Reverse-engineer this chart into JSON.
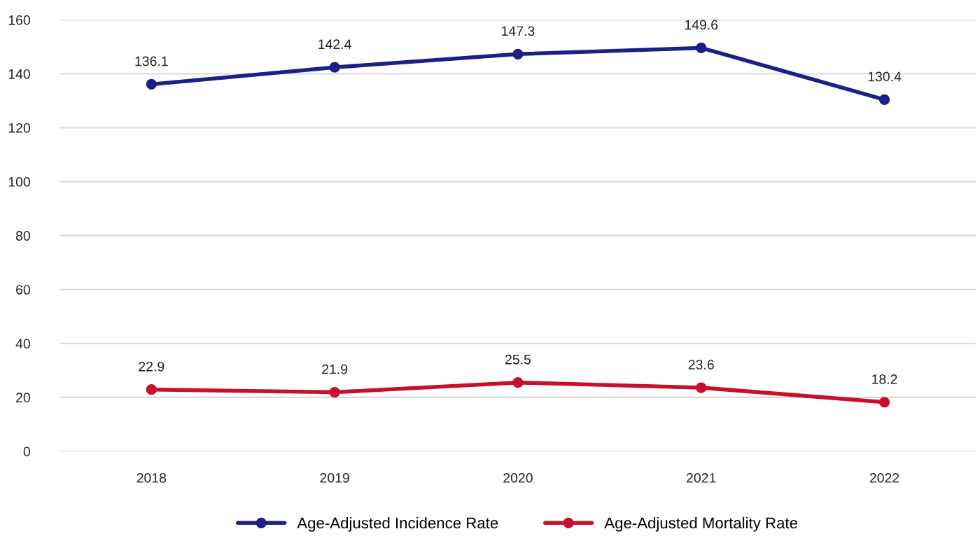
{
  "chart_data": {
    "type": "line",
    "categories": [
      "2018",
      "2019",
      "2020",
      "2021",
      "2022"
    ],
    "series": [
      {
        "name": "Age-Adjusted Incidence Rate",
        "color": "#1c1f86",
        "values": [
          136.1,
          142.4,
          147.3,
          149.6,
          130.4
        ]
      },
      {
        "name": "Age-Adjusted Mortality Rate",
        "color": "#c8102e",
        "values": [
          22.9,
          21.9,
          25.5,
          23.6,
          18.2
        ]
      }
    ],
    "ylim": [
      0,
      160
    ],
    "yticks": [
      0,
      20,
      40,
      60,
      80,
      100,
      120,
      140,
      160
    ],
    "grid": "y",
    "legend": "bottom",
    "marker": "circle",
    "line_style": "solid",
    "data_labels": true
  }
}
